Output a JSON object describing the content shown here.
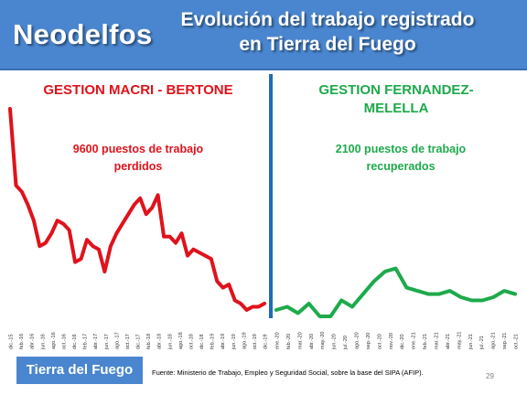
{
  "header": {
    "brand": "Neodelfos",
    "title_line1": "Evolución del trabajo registrado",
    "title_line2": "en Tierra del Fuego"
  },
  "footer": {
    "badge": "Tierra del Fuego",
    "source": "Fuente: Ministerio de Trabajo, Empleo y Seguridad Social, sobre la base del SIPA (AFIP).",
    "page_number": "29"
  },
  "colors": {
    "header": "#4a86cf",
    "macri": "#e0121b",
    "fernandez": "#1daa4b",
    "divider": "#1f6bb5"
  },
  "chart_data": {
    "type": "line",
    "grid": false,
    "legend": "none",
    "y_ticks_shown": false,
    "annotations": {
      "left_heading": "GESTION MACRI - BERTONE",
      "left_note_line1": "9600 puestos de trabajo",
      "left_note_line2": "perdidos",
      "right_heading_line1": "GESTION FERNANDEZ-",
      "right_heading_line2": "MELELLA",
      "right_note_line1": "2100 puestos de trabajo",
      "right_note_line2": "recuperados"
    },
    "x_ticks_left": [
      "dic.-15",
      "feb.-16",
      "abr.-16",
      "jun.-16",
      "ago.-16",
      "oct.-16",
      "dic.-16",
      "feb.-17",
      "abr.-17",
      "jun.-17",
      "ago.-17",
      "oct.-17",
      "dic.-17",
      "feb.-18",
      "abr.-18",
      "jun.-18",
      "ago.-18",
      "oct.-18",
      "dic.-18",
      "feb.-19",
      "abr.-19",
      "jun.-19",
      "ago.-19",
      "oct.-19",
      "dic.-19"
    ],
    "x_ticks_right": [
      "ene.-20",
      "feb.-20",
      "mar.-20",
      "abr.-20",
      "may.-20",
      "jun.-20",
      "jul.-20",
      "ago.-20",
      "sep.-20",
      "oct.-20",
      "nov.-20",
      "dic.-20",
      "ene.-21",
      "feb.-21",
      "mar.-21",
      "abr.-21",
      "may.-21",
      "jun.-21",
      "jul.-21",
      "ago.-21",
      "sep.-21",
      "oct.-21"
    ],
    "series": [
      {
        "values": [
          100,
          76,
          74,
          70,
          65,
          57,
          58,
          61,
          65,
          64,
          62,
          52,
          53,
          59,
          57,
          56,
          49,
          57,
          61,
          64,
          67,
          70,
          72,
          67,
          69,
          73,
          60,
          60,
          58,
          61,
          54,
          56,
          55,
          54,
          53,
          46,
          44,
          45,
          40,
          39,
          37,
          38,
          38,
          39
        ]
      },
      {
        "values": [
          37,
          38,
          36,
          39,
          35,
          35,
          40,
          38,
          42,
          46,
          49,
          50,
          44,
          43,
          42,
          42,
          43,
          41,
          40,
          40,
          41,
          43,
          42
        ]
      }
    ]
  }
}
